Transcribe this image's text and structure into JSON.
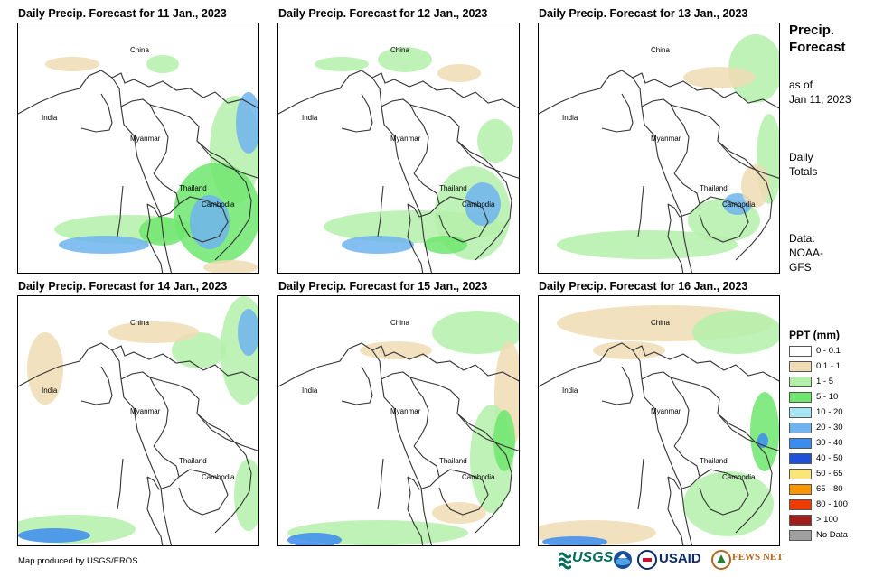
{
  "panels": [
    {
      "title": "Daily Precip. Forecast for 11 Jan., 2023"
    },
    {
      "title": "Daily Precip. Forecast for 12 Jan., 2023"
    },
    {
      "title": "Daily Precip. Forecast for 13 Jan., 2023"
    },
    {
      "title": "Daily Precip. Forecast for 14 Jan., 2023"
    },
    {
      "title": "Daily Precip. Forecast for 15 Jan., 2023"
    },
    {
      "title": "Daily Precip. Forecast for 16 Jan., 2023"
    }
  ],
  "places": {
    "china": "China",
    "india": "India",
    "myanmar": "Myanmar",
    "thailand": "Thailand",
    "cambodia": "Cambodia"
  },
  "sidebar": {
    "title_line1": "Precip.",
    "title_line2": "Forecast",
    "asof_line1": "as of",
    "asof_line2": "Jan 11, 2023",
    "totals_line1": "Daily",
    "totals_line2": "Totals",
    "data_line1": "Data:",
    "data_line2": "NOAA-",
    "data_line3": "GFS"
  },
  "legend": {
    "title": "PPT (mm)",
    "items": [
      {
        "label": "0 - 0.1",
        "color": "#ffffff"
      },
      {
        "label": "0.1 - 1",
        "color": "#f0dcb4"
      },
      {
        "label": "1 - 5",
        "color": "#b4f0aa"
      },
      {
        "label": "5 - 10",
        "color": "#6ee66e"
      },
      {
        "label": "10 - 20",
        "color": "#a9e6f5"
      },
      {
        "label": "20 - 30",
        "color": "#6eb4f0"
      },
      {
        "label": "30 - 40",
        "color": "#3c8cf0"
      },
      {
        "label": "40 - 50",
        "color": "#1e50dc"
      },
      {
        "label": "50 - 65",
        "color": "#fae678"
      },
      {
        "label": "65 - 80",
        "color": "#fa9600"
      },
      {
        "label": "80 - 100",
        "color": "#f03c00"
      },
      {
        "label": "> 100",
        "color": "#a01e1e"
      },
      {
        "label": "No Data",
        "color": "#a0a0a0"
      }
    ]
  },
  "credit": "Map produced by USGS/EROS",
  "logos": {
    "usgs": "USGS",
    "usaid": "USAID",
    "fewsnet": "FEWS NET"
  }
}
